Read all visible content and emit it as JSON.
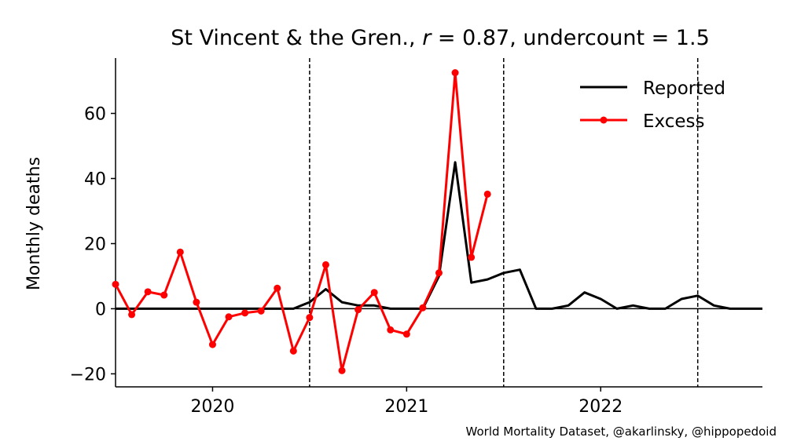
{
  "chart_data": {
    "type": "line",
    "title": "St Vincent & the Gren., r = 0.87, undercount = 1.5",
    "title_parts": {
      "country": "St Vincent & the Gren., ",
      "r_symbol": "r",
      "r_value": " = 0.87, undercount = 1.5"
    },
    "ylabel": "Monthly deaths",
    "ylim": [
      -24,
      77
    ],
    "yticks": [
      -20,
      0,
      20,
      40,
      60
    ],
    "ytick_labels": [
      "−20",
      "0",
      "20",
      "40",
      "60"
    ],
    "xlim": [
      "2019-07",
      "2022-11"
    ],
    "xticks": [
      {
        "label": "2020",
        "pos": "2020-01"
      },
      {
        "label": "2021",
        "pos": "2021-01"
      },
      {
        "label": "2022",
        "pos": "2022-01"
      }
    ],
    "vlines": [
      "2020-07",
      "2021-07",
      "2022-07"
    ],
    "hline": 0,
    "legend_position": "upper-right",
    "series": [
      {
        "name": "Reported",
        "color": "#000000",
        "marker": false,
        "x": [
          "2019-07",
          "2019-08",
          "2019-09",
          "2019-10",
          "2019-11",
          "2019-12",
          "2020-01",
          "2020-02",
          "2020-03",
          "2020-04",
          "2020-05",
          "2020-06",
          "2020-07",
          "2020-08",
          "2020-09",
          "2020-10",
          "2020-11",
          "2020-12",
          "2021-01",
          "2021-02",
          "2021-03",
          "2021-04",
          "2021-05",
          "2021-06",
          "2021-07",
          "2021-08",
          "2021-09",
          "2021-10",
          "2021-11",
          "2021-12",
          "2022-01",
          "2022-02",
          "2022-03",
          "2022-04",
          "2022-05",
          "2022-06",
          "2022-07",
          "2022-08",
          "2022-09",
          "2022-10",
          "2022-11"
        ],
        "values": [
          0,
          0,
          0,
          0,
          0,
          0,
          0,
          0,
          0,
          0,
          0,
          0,
          2,
          6,
          2,
          1,
          1,
          0,
          0,
          0,
          10,
          45,
          8,
          9,
          11,
          12,
          0,
          0,
          1,
          5,
          3,
          0,
          1,
          0,
          0,
          3,
          4,
          1,
          0,
          0,
          0
        ]
      },
      {
        "name": "Excess",
        "color": "#ff0000",
        "marker": true,
        "x": [
          "2019-07",
          "2019-08",
          "2019-09",
          "2019-10",
          "2019-11",
          "2019-12",
          "2020-01",
          "2020-02",
          "2020-03",
          "2020-04",
          "2020-05",
          "2020-06",
          "2020-07",
          "2020-08",
          "2020-09",
          "2020-10",
          "2020-11",
          "2020-12",
          "2021-01",
          "2021-02",
          "2021-03",
          "2021-04",
          "2021-05",
          "2021-06"
        ],
        "values": [
          7.5,
          -1.8,
          5.2,
          4.2,
          17.4,
          2.0,
          -11.0,
          -2.5,
          -1.3,
          -0.7,
          6.3,
          -13.0,
          -2.7,
          13.5,
          -19.0,
          -0.3,
          5.0,
          -6.5,
          -7.8,
          0.3,
          11.0,
          72.5,
          15.8,
          35.2
        ]
      }
    ]
  },
  "credit": "World Mortality Dataset, @akarlinsky, @hippopedoid"
}
